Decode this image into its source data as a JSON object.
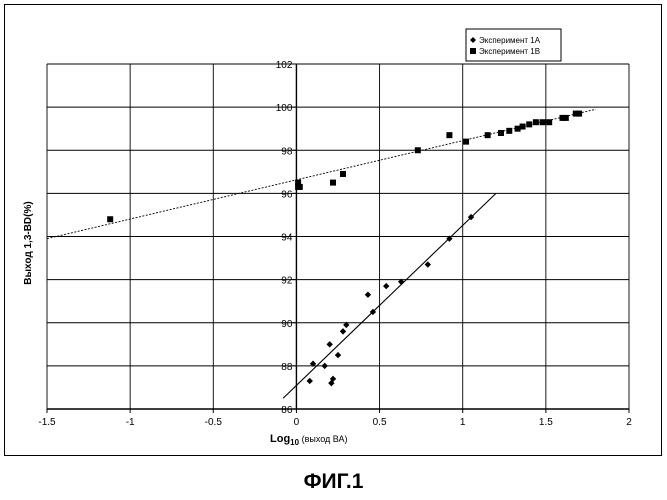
{
  "figure_caption": "ФИГ.1",
  "chart_data": {
    "type": "scatter",
    "xlabel_main": "Log",
    "xlabel_sub": "10",
    "xlabel_rest": " (выход ВА)",
    "ylabel": "Выход 1,3-BD(%)",
    "xlim": [
      -1.5,
      2
    ],
    "ylim": [
      86,
      102
    ],
    "x_ticks": [
      -1.5,
      -1,
      -0.5,
      0,
      0.5,
      1,
      1.5,
      2
    ],
    "x_tick_labels": [
      "-1.5",
      "-1",
      "-0.5",
      "0",
      "0.5",
      "1",
      "1.5",
      "2"
    ],
    "y_ticks": [
      86,
      88,
      90,
      92,
      94,
      96,
      98,
      100,
      102
    ],
    "y_tick_labels": [
      "86",
      "88",
      "90",
      "92",
      "94",
      "96",
      "98",
      "100",
      "102"
    ],
    "grid": true,
    "legend_position": "top-right",
    "series": [
      {
        "name": "Эксперимент 1А",
        "marker": "diamond",
        "points": [
          [
            0.08,
            87.3
          ],
          [
            0.1,
            88.1
          ],
          [
            0.17,
            88.0
          ],
          [
            0.2,
            89.0
          ],
          [
            0.21,
            87.2
          ],
          [
            0.22,
            87.4
          ],
          [
            0.25,
            88.5
          ],
          [
            0.28,
            89.6
          ],
          [
            0.3,
            89.9
          ],
          [
            0.43,
            91.3
          ],
          [
            0.46,
            90.5
          ],
          [
            0.54,
            91.7
          ],
          [
            0.63,
            91.9
          ],
          [
            0.79,
            92.7
          ],
          [
            0.92,
            93.9
          ],
          [
            1.05,
            94.9
          ]
        ],
        "trendline": [
          [
            -0.08,
            86.5
          ],
          [
            1.2,
            96.0
          ]
        ]
      },
      {
        "name": "Эксперимент 1В",
        "marker": "square",
        "points": [
          [
            -1.12,
            94.8
          ],
          [
            0.01,
            96.5
          ],
          [
            0.01,
            96.3
          ],
          [
            0.02,
            96.3
          ],
          [
            0.22,
            96.5
          ],
          [
            0.28,
            96.9
          ],
          [
            0.73,
            98.0
          ],
          [
            0.92,
            98.7
          ],
          [
            1.02,
            98.4
          ],
          [
            1.15,
            98.7
          ],
          [
            1.23,
            98.8
          ],
          [
            1.28,
            98.9
          ],
          [
            1.33,
            99.0
          ],
          [
            1.36,
            99.1
          ],
          [
            1.4,
            99.2
          ],
          [
            1.44,
            99.3
          ],
          [
            1.48,
            99.3
          ],
          [
            1.52,
            99.3
          ],
          [
            1.6,
            99.5
          ],
          [
            1.62,
            99.5
          ],
          [
            1.68,
            99.7
          ],
          [
            1.7,
            99.7
          ]
        ],
        "trendline": [
          [
            -1.5,
            93.9
          ],
          [
            1.8,
            99.9
          ]
        ]
      }
    ]
  }
}
